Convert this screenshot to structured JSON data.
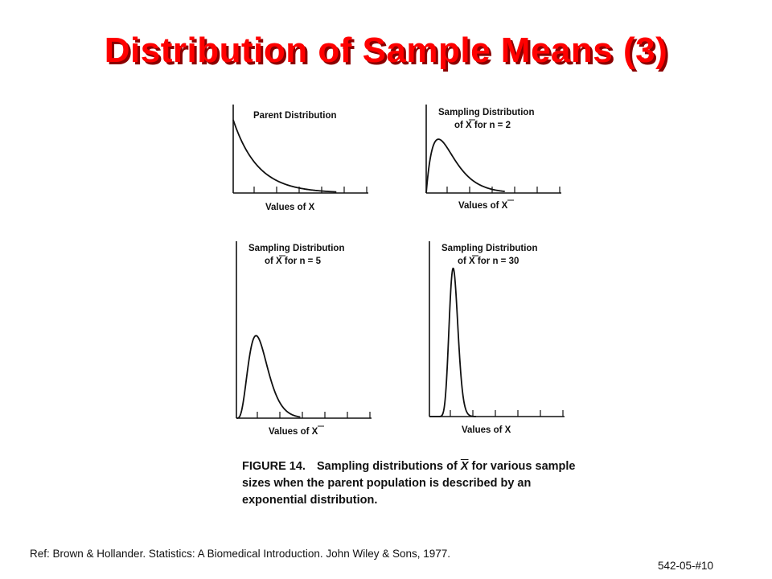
{
  "title": "Distribution of Sample Means (3)",
  "chart_data": [
    {
      "type": "line",
      "title_lines": [
        "Parent Distribution"
      ],
      "xlabel": "Values of X",
      "xbar_in_xlabel": false,
      "distribution": "exponential",
      "n": 1,
      "tick_count": 6,
      "xlim": [
        0,
        5.5
      ],
      "ylim": [
        0,
        1.1
      ]
    },
    {
      "type": "line",
      "title_lines": [
        "Sampling Distribution",
        "of X for n = 2"
      ],
      "xlabel": "Values of X",
      "xbar_in_xlabel": true,
      "distribution": "mean of exponential",
      "n": 2,
      "tick_count": 6,
      "xlim": [
        0,
        5.5
      ],
      "ylim": [
        0,
        1.1
      ]
    },
    {
      "type": "line",
      "title_lines": [
        "Sampling Distribution",
        "of X for n = 5"
      ],
      "xlabel": "Values of X",
      "xbar_in_xlabel": true,
      "distribution": "mean of exponential",
      "n": 5,
      "tick_count": 6,
      "xlim": [
        0,
        5.5
      ],
      "ylim": [
        0,
        2.0
      ]
    },
    {
      "type": "line",
      "title_lines": [
        "Sampling Distribution",
        "of X for n = 30"
      ],
      "xlabel": "Values of X",
      "xbar_in_xlabel": false,
      "distribution": "mean of exponential",
      "n": 30,
      "tick_count": 6,
      "xlim": [
        0,
        5.5
      ],
      "ylim": [
        0,
        2.5
      ]
    }
  ],
  "caption": {
    "figure_label": "FIGURE 14.",
    "text_before_symbol": "Sampling distributions of",
    "symbol": "X",
    "text_after_symbol": "for various sample sizes when the parent population is described by an exponential distribution."
  },
  "reference": "Ref: Brown & Hollander. Statistics: A Biomedical Introduction. John Wiley & Sons, 1977.",
  "slide_number": "542-05-#10",
  "colors": {
    "title": "#ff0000",
    "title_shadow": "#8a0000",
    "ink": "#111111"
  }
}
